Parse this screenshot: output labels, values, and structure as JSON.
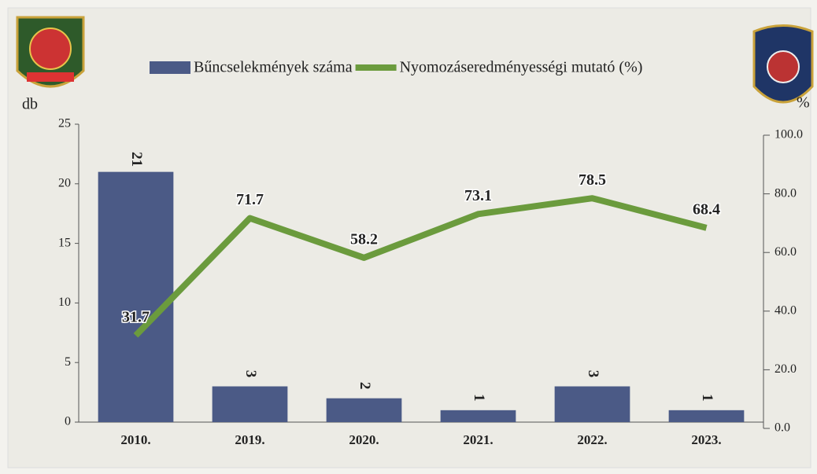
{
  "chart_data": {
    "type": "combo",
    "ylabel": "db",
    "y2label": "%",
    "categories": [
      "2010.",
      "2019.",
      "2020.",
      "2021.",
      "2022.",
      "2023."
    ],
    "series": [
      {
        "name": "Bűncselekmények száma",
        "type": "bar",
        "color": "#4b5a86",
        "values": [
          21,
          3,
          2,
          1,
          3,
          1
        ]
      },
      {
        "name": "Nyomozáseredményességi mutató (%)",
        "type": "line",
        "axis": "y2",
        "color": "#6b9b3d",
        "values": [
          31.7,
          71.7,
          58.2,
          73.1,
          78.5,
          68.4
        ]
      }
    ],
    "ylim": [
      0,
      25
    ],
    "yticks": [
      0,
      5,
      10,
      15,
      20,
      25
    ],
    "y2lim": [
      0,
      100
    ],
    "y2ticks": [
      {
        "value": 0,
        "label": "0.0"
      },
      {
        "value": 20,
        "label": "20.0"
      },
      {
        "value": 40,
        "label": "40.0"
      },
      {
        "value": 60,
        "label": "60.0"
      },
      {
        "value": 80,
        "label": "80.0"
      },
      {
        "value": 100,
        "label": "100.0"
      }
    ]
  }
}
